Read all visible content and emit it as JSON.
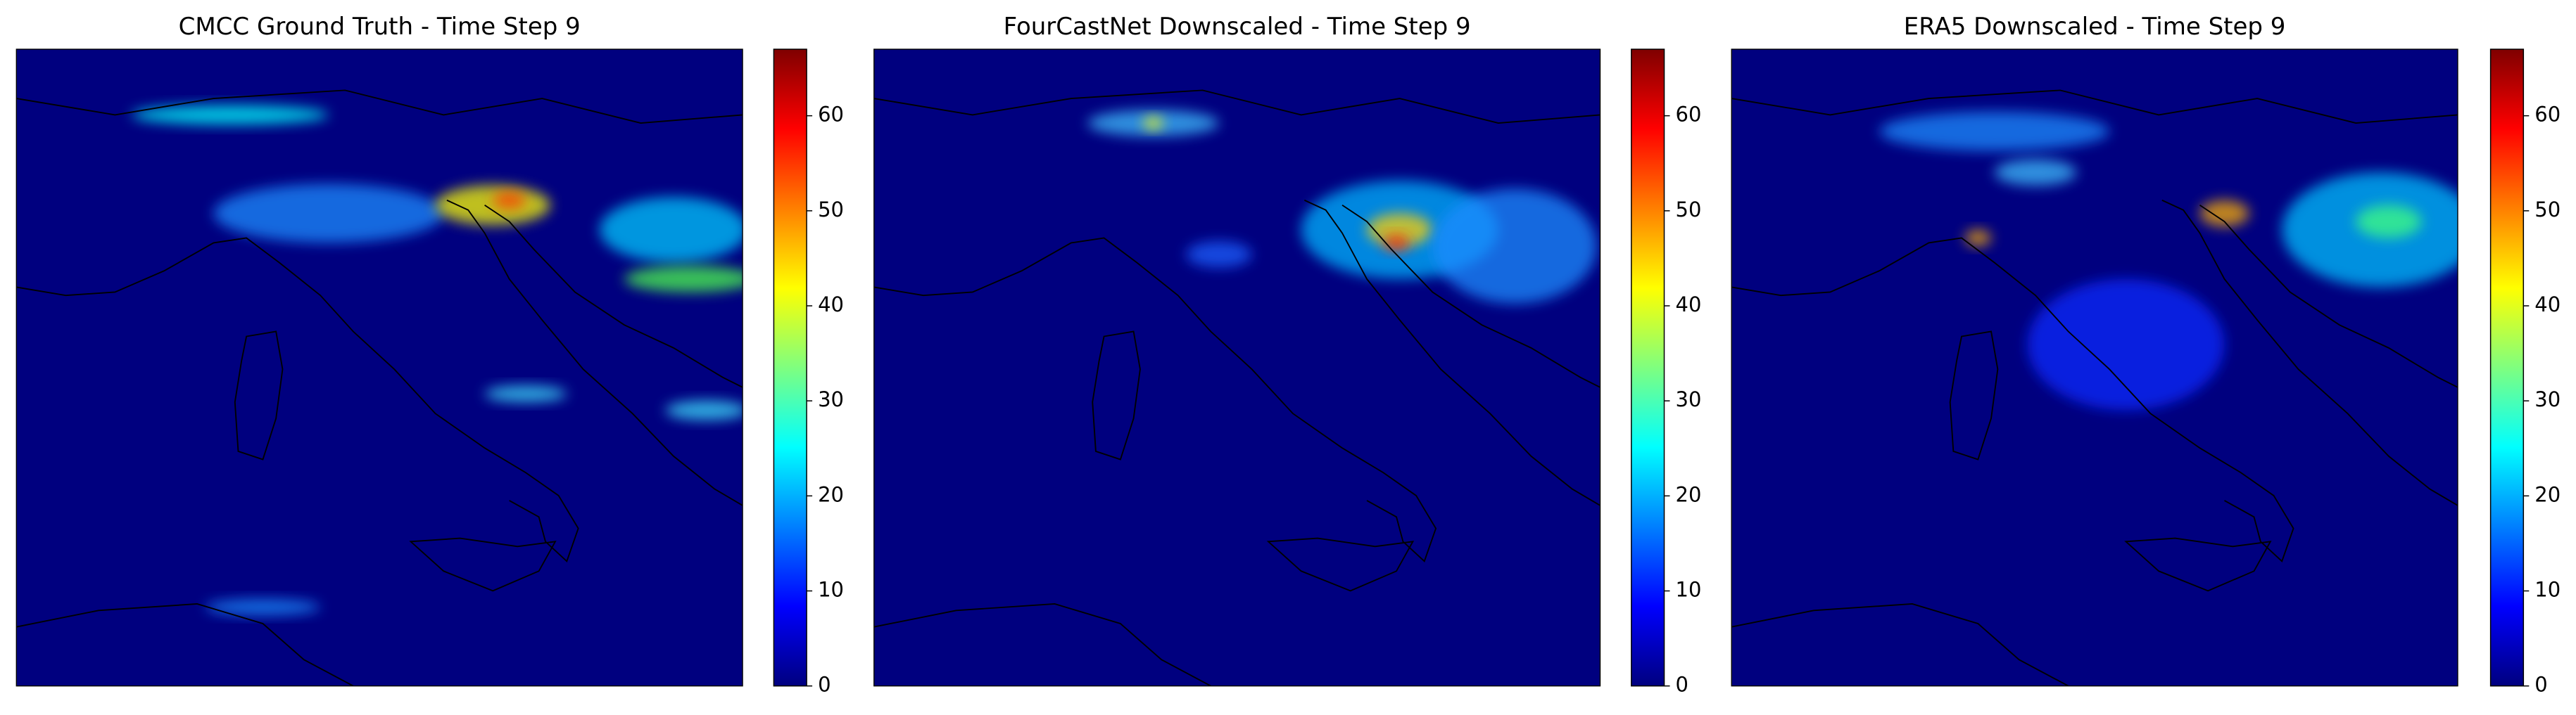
{
  "chart_data": [
    {
      "type": "heatmap",
      "title": "CMCC Ground Truth - Time Step 9",
      "colormap": "jet",
      "ylim": [
        0,
        67
      ],
      "yticks": [
        0,
        10,
        20,
        30,
        40,
        50,
        60
      ]
    },
    {
      "type": "heatmap",
      "title": "FourCastNet Downscaled - Time Step 9",
      "colormap": "jet",
      "ylim": [
        0,
        67
      ],
      "yticks": [
        0,
        10,
        20,
        30,
        40,
        50,
        60
      ]
    },
    {
      "type": "heatmap",
      "title": "ERA5 Downscaled - Time Step 9",
      "colormap": "jet",
      "ylim": [
        0,
        67
      ],
      "yticks": [
        0,
        10,
        20,
        30,
        40,
        50,
        60
      ]
    }
  ]
}
